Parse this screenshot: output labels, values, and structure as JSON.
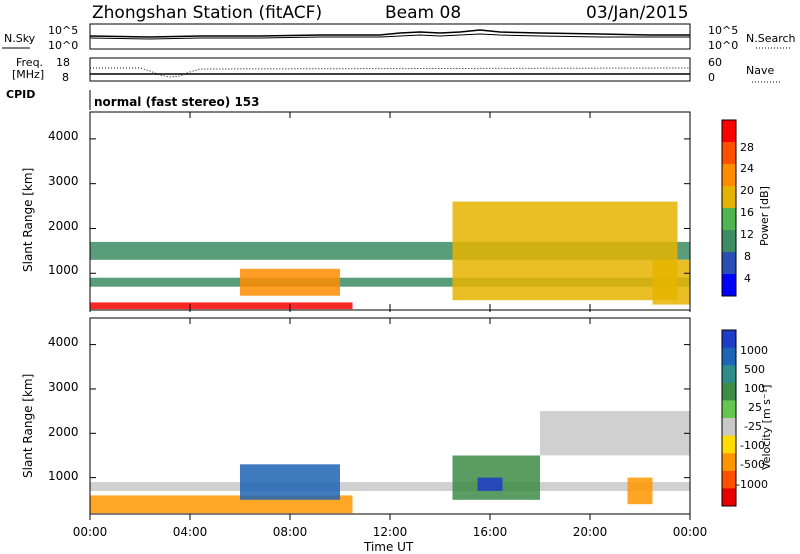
{
  "header": {
    "station": "Zhongshan Station (fitACF)",
    "beam": "Beam 08",
    "date": "03/Jan/2015"
  },
  "noise_panel": {
    "left_label": "N.Sky",
    "right_label": "N.Search",
    "left_ticks": [
      "10^5",
      "10^0"
    ],
    "right_ticks": [
      "10^5",
      "10^0"
    ]
  },
  "freq_panel": {
    "left_label_1": "Freq.",
    "left_label_2": "[MHz]",
    "right_label": "Nave",
    "left_ticks": [
      "18",
      "8"
    ],
    "right_ticks": [
      "60",
      "0"
    ]
  },
  "cpid": {
    "label": "CPID",
    "value": "normal (fast stereo) 153"
  },
  "power_panel": {
    "ylabel": "Slant Range [km]",
    "yticks": [
      "4000",
      "3000",
      "2000",
      "1000"
    ],
    "colorbar_label": "Power [dB]",
    "colorbar_ticks": [
      "28",
      "24",
      "20",
      "16",
      "12",
      "8",
      "4"
    ],
    "colors": [
      "#0000ff",
      "#2850b4",
      "#3c8c64",
      "#50b450",
      "#e6b400",
      "#ff8c00",
      "#ff5000",
      "#ff0000"
    ]
  },
  "velocity_panel": {
    "ylabel": "Slant Range [km]",
    "yticks": [
      "4000",
      "3000",
      "2000",
      "1000"
    ],
    "colorbar_label": "Velocity [m s⁻¹]",
    "colorbar_ticks": [
      "1000",
      "500",
      "100",
      "25",
      "-25",
      "-100",
      "-500",
      "-1000"
    ],
    "colors": [
      "#1e3cc8",
      "#1e64b4",
      "#2d8c8c",
      "#3c8c46",
      "#64c850",
      "#c8c8c8",
      "#ffdc00",
      "#ff9600",
      "#ff5000",
      "#e60000"
    ]
  },
  "chart_data": [
    {
      "type": "heatmap",
      "title": "Power",
      "xlabel": "Time UT",
      "ylabel": "Slant Range [km]",
      "x_range": [
        "00:00",
        "24:00"
      ],
      "ylim": [
        180,
        4600
      ],
      "zlabel": "Power [dB]",
      "zlim": [
        0,
        32
      ],
      "x_ticks": [
        "00:00",
        "04:00",
        "08:00",
        "12:00",
        "16:00",
        "20:00",
        "00:00"
      ],
      "regions": [
        {
          "t_start": 0.0,
          "t_end": 10.5,
          "range_km": [
            200,
            350
          ],
          "power_db": 30
        },
        {
          "t_start": 0.0,
          "t_end": 24.0,
          "range_km": [
            700,
            900
          ],
          "power_db": 10
        },
        {
          "t_start": 0.0,
          "t_end": 24.0,
          "range_km": [
            1300,
            1700
          ],
          "power_db": 8
        },
        {
          "t_start": 6.0,
          "t_end": 10.0,
          "range_km": [
            500,
            1100
          ],
          "power_db": 20
        },
        {
          "t_start": 14.5,
          "t_end": 23.5,
          "range_km": [
            400,
            2600
          ],
          "power_db": 16
        },
        {
          "t_start": 22.5,
          "t_end": 24.0,
          "range_km": [
            300,
            1300
          ],
          "power_db": 18
        }
      ]
    },
    {
      "type": "heatmap",
      "title": "Velocity",
      "xlabel": "Time UT",
      "ylabel": "Slant Range [km]",
      "x_range": [
        "00:00",
        "24:00"
      ],
      "ylim": [
        180,
        4600
      ],
      "zlabel": "Velocity [m s-1]",
      "zlim": [
        -1000,
        1000
      ],
      "x_ticks": [
        "00:00",
        "04:00",
        "08:00",
        "12:00",
        "16:00",
        "20:00",
        "00:00"
      ],
      "regions": [
        {
          "t_start": 0.0,
          "t_end": 10.5,
          "range_km": [
            200,
            600
          ],
          "velocity_ms": -400
        },
        {
          "t_start": 0.0,
          "t_end": 24.0,
          "range_km": [
            700,
            900
          ],
          "velocity_ms": 0
        },
        {
          "t_start": 6.0,
          "t_end": 10.0,
          "range_km": [
            500,
            1300
          ],
          "velocity_ms": 600
        },
        {
          "t_start": 14.5,
          "t_end": 18.0,
          "range_km": [
            500,
            1500
          ],
          "velocity_ms": 300
        },
        {
          "t_start": 15.5,
          "t_end": 16.5,
          "range_km": [
            700,
            1000
          ],
          "velocity_ms": 900
        },
        {
          "t_start": 18.0,
          "t_end": 24.0,
          "range_km": [
            1500,
            2500
          ],
          "velocity_ms": 0
        },
        {
          "t_start": 21.5,
          "t_end": 22.5,
          "range_km": [
            400,
            1000
          ],
          "velocity_ms": -500
        }
      ]
    }
  ]
}
